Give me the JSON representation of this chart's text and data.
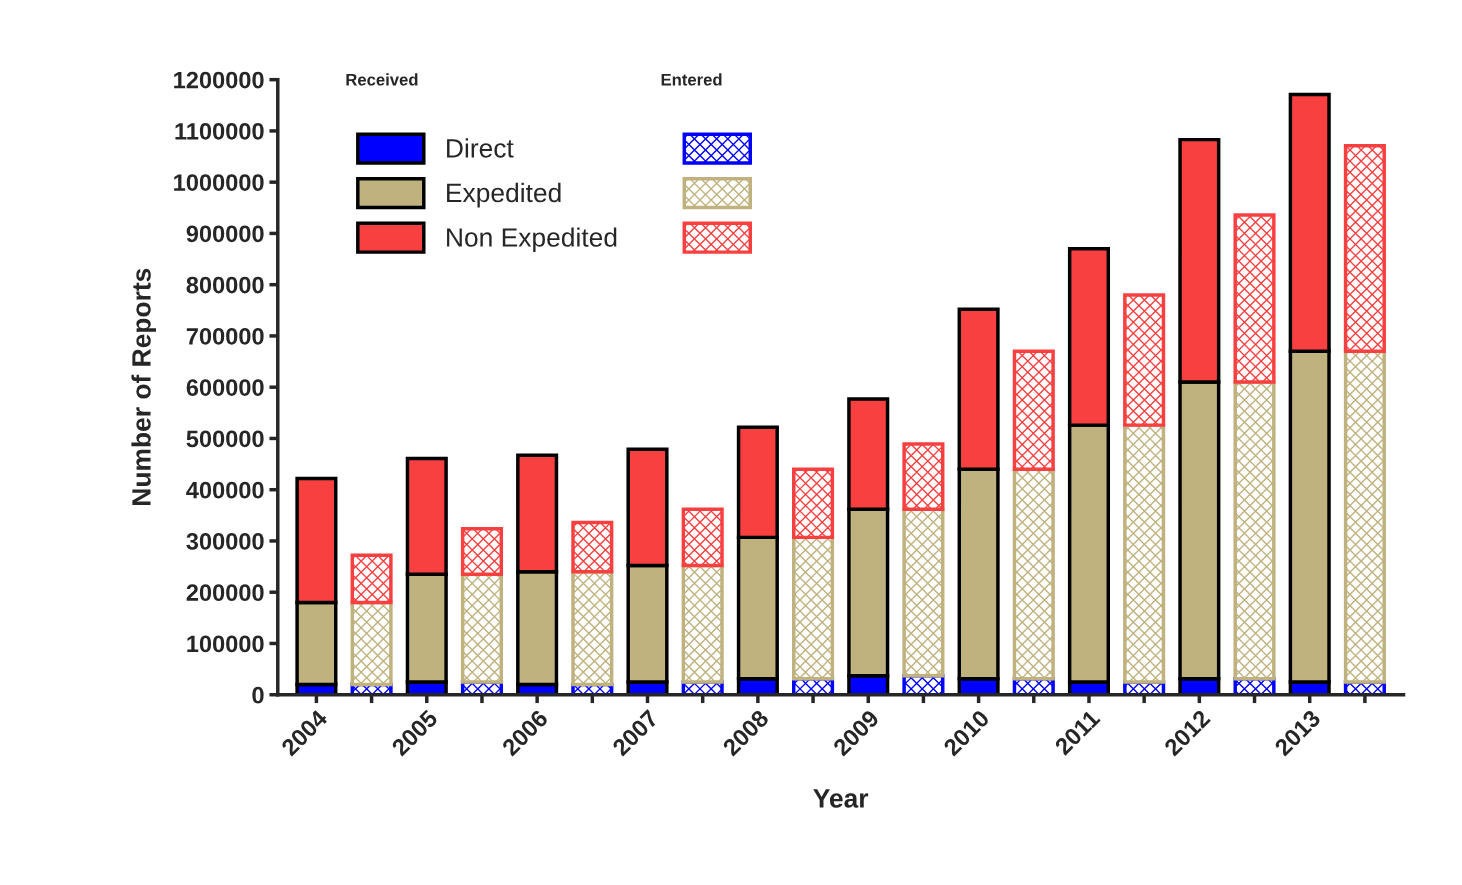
{
  "chart_data": {
    "type": "bar",
    "stacked": true,
    "xlabel": "Year",
    "ylabel": "Number of Reports",
    "categories": [
      "2004",
      null,
      "2005",
      null,
      "2006",
      null,
      "2007",
      null,
      "2008",
      null,
      "2009",
      null,
      "2010",
      null,
      "2011",
      null,
      "2012",
      null,
      "2013",
      null
    ],
    "series": [
      {
        "name": "Direct",
        "color": "#0000ff",
        "values": [
          20000,
          null,
          25000,
          null,
          20000,
          null,
          25000,
          null,
          31000,
          null,
          37000,
          null,
          31000,
          null,
          25000,
          null,
          31000,
          null,
          25000,
          null
        ]
      },
      {
        "name": "Expedited",
        "color": "#bfb27e",
        "values": [
          160000,
          null,
          210000,
          null,
          220000,
          null,
          227000,
          null,
          276000,
          null,
          325000,
          null,
          409000,
          null,
          501000,
          null,
          579000,
          null,
          645000,
          null
        ]
      },
      {
        "name": "Non Expedited",
        "color": "#f94040",
        "values": [
          242000,
          null,
          226000,
          null,
          227000,
          null,
          227000,
          null,
          215000,
          null,
          215000,
          null,
          312000,
          null,
          344000,
          null,
          473000,
          null,
          501000,
          null
        ]
      },
      {
        "color": "#0000ff",
        "values": [
          null,
          20000,
          null,
          25000,
          null,
          20000,
          null,
          25000,
          null,
          31000,
          null,
          37000,
          null,
          31000,
          null,
          25000,
          null,
          31000,
          null,
          25000
        ]
      },
      {
        "color": "#bfb27e",
        "values": [
          null,
          160000,
          null,
          210000,
          null,
          220000,
          null,
          227000,
          null,
          276000,
          null,
          325000,
          null,
          409000,
          null,
          501000,
          null,
          579000,
          null,
          645000
        ]
      },
      {
        "color": "#f94040",
        "values": [
          null,
          92000,
          null,
          89000,
          null,
          96000,
          null,
          110000,
          null,
          133000,
          null,
          127000,
          null,
          230000,
          null,
          254000,
          null,
          326000,
          null,
          401000
        ]
      }
    ],
    "ylim": [
      0,
      1200000
    ],
    "yticks": [
      0,
      100000,
      200000,
      300000,
      400000,
      500000,
      600000,
      700000,
      800000,
      900000,
      1000000,
      1100000,
      1200000
    ],
    "legend": "top left",
    "grid": false,
    "annotations": [
      "Received",
      "Entered"
    ]
  }
}
